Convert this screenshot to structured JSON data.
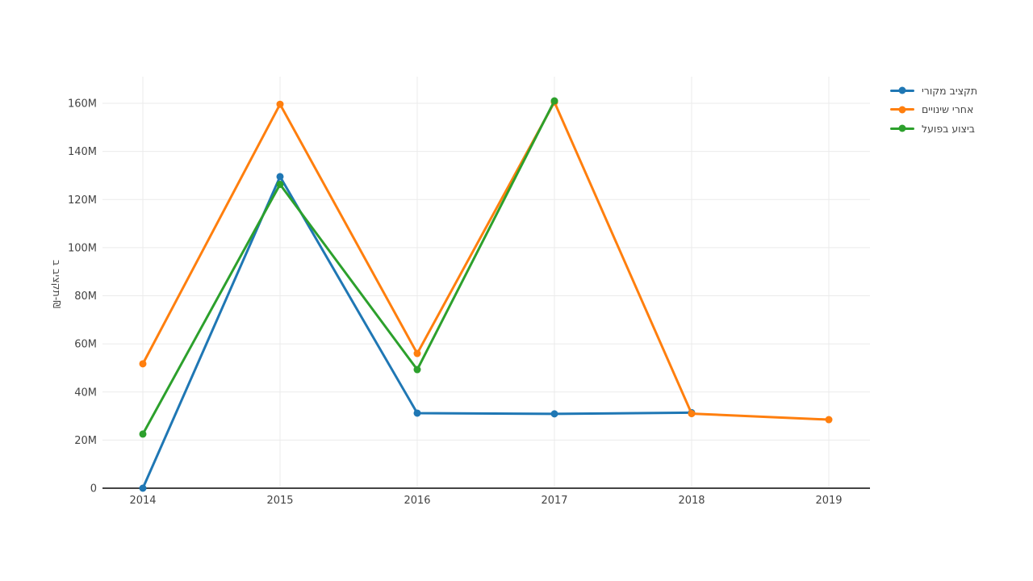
{
  "chart_data": {
    "type": "line",
    "x": [
      2014,
      2015,
      2016,
      2017,
      2018,
      2019
    ],
    "x_labels": [
      "2014",
      "2015",
      "2016",
      "2017",
      "2018",
      "2019"
    ],
    "series": [
      {
        "name": "תקציב מקורי",
        "color": "#1f77b4",
        "values": [
          0,
          129.5,
          31.2,
          30.9,
          31.4,
          null
        ]
      },
      {
        "name": "אחרי שינויים",
        "color": "#ff7f0e",
        "values": [
          51.7,
          159.6,
          56.0,
          160.5,
          31.0,
          28.5
        ]
      },
      {
        "name": "ביצוע בפועל",
        "color": "#2ca02c",
        "values": [
          22.5,
          126.3,
          49.3,
          161.0,
          null,
          null
        ]
      }
    ],
    "unit": "M",
    "title": "",
    "xlabel": "",
    "ylabel": "תקציב ב-₪",
    "ylim": [
      0,
      171
    ],
    "yticks": [
      0,
      20,
      40,
      60,
      80,
      100,
      120,
      140,
      160
    ],
    "ytick_labels": [
      "0",
      "20M",
      "40M",
      "60M",
      "80M",
      "100M",
      "120M",
      "140M",
      "160M"
    ],
    "grid": true,
    "legend_position": "top-right"
  },
  "style": {
    "background": "#ffffff",
    "grid_color": "#ebebeb",
    "axis_line_color": "#444444",
    "tick_text_color": "#444444"
  }
}
